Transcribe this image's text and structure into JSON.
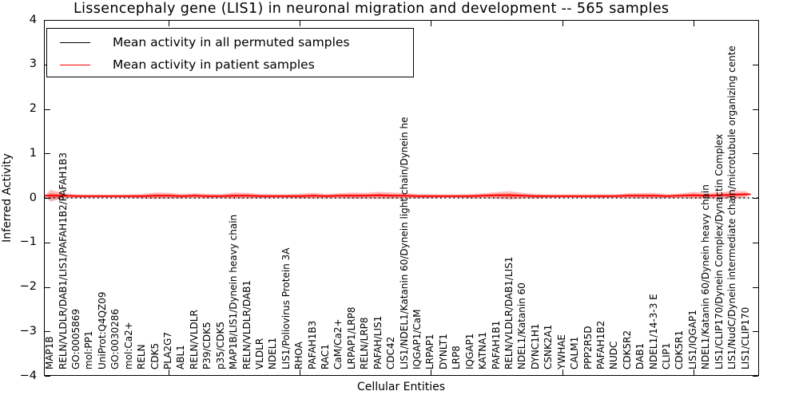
{
  "title": "Lissencephaly gene (LIS1) in neuronal migration and development -- 565 samples",
  "legend": {
    "entries": [
      {
        "label": "Mean activity in all permuted samples",
        "color": "#000000"
      },
      {
        "label": "Mean activity in patient samples",
        "color": "#ff0000"
      }
    ]
  },
  "chart_data": {
    "type": "line",
    "title": "Lissencephaly gene (LIS1) in neuronal migration and development -- 565 samples",
    "xlabel": "Cellular Entities",
    "ylabel": "Inferred Activity",
    "ylim": [
      -4,
      4
    ],
    "yticks": [
      4,
      3,
      2,
      1,
      0,
      -1,
      -2,
      -3,
      -4
    ],
    "ytick_labels": [
      "4",
      "3",
      "2",
      "1",
      "0",
      "−1",
      "−2",
      "−3",
      "−4"
    ],
    "xticks": [
      10,
      20,
      30,
      40,
      50
    ],
    "grid": false,
    "legend_position": "upper left",
    "band_color": "#ff0000",
    "categories": [
      "MAP1B",
      "RELN/VLDLR/DAB1/LIS1/PAFAH1B2/PAFAH1B3",
      "GO:0005869",
      "mol:PP1",
      "UniProt:Q4QZ09",
      "GO:0030286",
      "mol:Ca2+",
      "RELN",
      "CDK5",
      "PLA2G7",
      "ABL1",
      "RELN/VLDLR",
      "P39/CDK5",
      "p35/CDK5",
      "MAP1B/LIS1/Dynein heavy chain",
      "RELN/VLDLR/DAB1",
      "VLDLR",
      "NDEL1",
      "LIS1/Poliovirus Protein 3A",
      "RHOA",
      "PAFAH1B3",
      "RAC1",
      "CaM/Ca2+",
      "LRPAP1/LRP8",
      "RELN/LRP8",
      "PAFAH/LIS1",
      "CDC42",
      "LIS1/NDEL1/Katanin 60/Dynein light chain/Dynein he",
      "IQGAP1/CaM",
      "LRPAP1",
      "DYNLT1",
      "LRP8",
      "IQGAP1",
      "KATNA1",
      "PAFAH1B1",
      "RELN/VLDLR/DAB1/LIS1",
      "NDEL1/Katanin 60",
      "DYNC1H1",
      "CSNK2A1",
      "YWHAE",
      "CALM1",
      "PPP2R5D",
      "PAFAH1B2",
      "NUDC",
      "CDK5R2",
      "DAB1",
      "NDEL1/14-3-3 E",
      "CLIP1",
      "CDK5R1",
      "LIS1/IQGAP1",
      "NDEL1/Katanin 60/Dynein heavy chain",
      "LIS1/CLIP170/Dynein Complex/Dynactin Complex",
      "LIS1/NudC/Dynein intermediate chain/microtubule organizing cente",
      "LIS1/CLIP170"
    ],
    "series": [
      {
        "name": "Mean activity in all permuted samples",
        "color": "#000000",
        "line_style": "dotted",
        "values": [
          0,
          0,
          0,
          0,
          0,
          0,
          0,
          0,
          0,
          0,
          0,
          0,
          0,
          0,
          0,
          0,
          0,
          0,
          0,
          0,
          0,
          0,
          0,
          0,
          0,
          0,
          0,
          0,
          0,
          0,
          0,
          0,
          0,
          0,
          0,
          0,
          0,
          0,
          0,
          0,
          0,
          0,
          0,
          0,
          0,
          0,
          0,
          0,
          0,
          0,
          0,
          0,
          0,
          0
        ]
      },
      {
        "name": "Mean activity in patient samples",
        "color": "#ff0000",
        "line_style": "solid",
        "values": [
          0.05,
          0.05,
          0.04,
          0.04,
          0.04,
          0.04,
          0.04,
          0.04,
          0.05,
          0.05,
          0.04,
          0.05,
          0.04,
          0.04,
          0.05,
          0.05,
          0.04,
          0.04,
          0.04,
          0.04,
          0.05,
          0.04,
          0.05,
          0.05,
          0.05,
          0.06,
          0.05,
          0.05,
          0.04,
          0.04,
          0.04,
          0.04,
          0.04,
          0.05,
          0.06,
          0.06,
          0.05,
          0.04,
          0.04,
          0.04,
          0.04,
          0.04,
          0.04,
          0.04,
          0.05,
          0.05,
          0.05,
          0.04,
          0.05,
          0.06,
          0.05,
          0.06,
          0.07,
          0.08
        ],
        "band_halfwidth": [
          0.13,
          0.06,
          0.04,
          0.035,
          0.035,
          0.035,
          0.04,
          0.05,
          0.07,
          0.065,
          0.05,
          0.055,
          0.05,
          0.045,
          0.07,
          0.065,
          0.05,
          0.045,
          0.045,
          0.055,
          0.065,
          0.05,
          0.055,
          0.07,
          0.065,
          0.075,
          0.07,
          0.06,
          0.05,
          0.045,
          0.04,
          0.04,
          0.05,
          0.055,
          0.07,
          0.09,
          0.065,
          0.05,
          0.04,
          0.04,
          0.04,
          0.04,
          0.045,
          0.04,
          0.055,
          0.06,
          0.065,
          0.045,
          0.05,
          0.075,
          0.06,
          0.07,
          0.08,
          0.07
        ]
      }
    ]
  }
}
